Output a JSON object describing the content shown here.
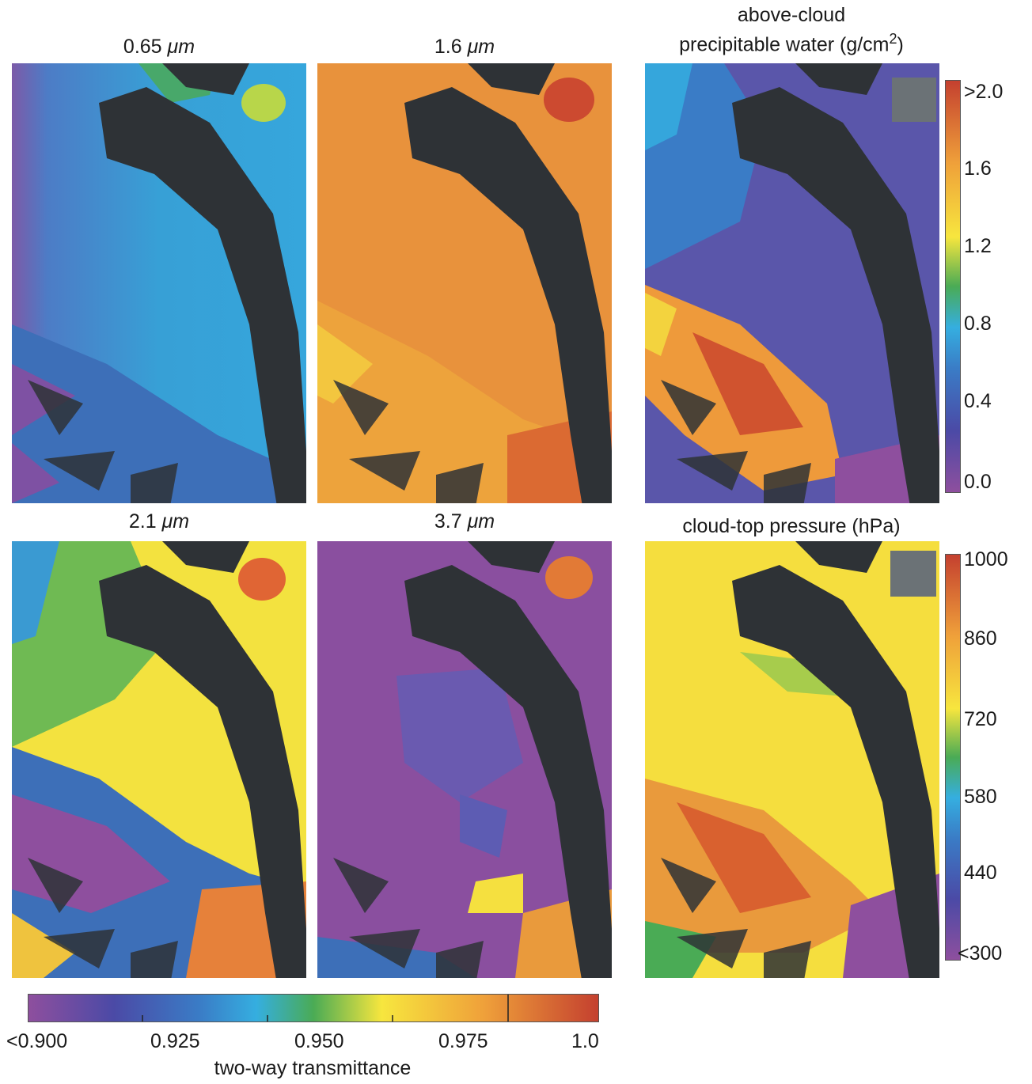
{
  "panels": {
    "p065": {
      "title_main": "0.65 ",
      "title_unit": "μm"
    },
    "p16": {
      "title_main": "1.6 ",
      "title_unit": "μm"
    },
    "p21": {
      "title_main": "2.1 ",
      "title_unit": "μm"
    },
    "p37": {
      "title_main": "3.7 ",
      "title_unit": "μm"
    },
    "pw": {
      "title_line1": "above-cloud",
      "title_line2": "precipitable water (g/cm",
      "title_sup": "2",
      "title_close": ")"
    },
    "ctp": {
      "title": "cloud-top pressure (hPa)"
    }
  },
  "colorbars": {
    "transmittance": {
      "label": "two-way transmittance",
      "ticks": [
        "<0.900",
        "0.925",
        "0.950",
        "0.975",
        "1.0"
      ]
    },
    "precip_water": {
      "ticks": [
        ">2.0",
        "1.6",
        "1.2",
        "0.8",
        "0.4",
        "0.0"
      ]
    },
    "pressure": {
      "ticks": [
        "1000",
        "860",
        "720",
        "580",
        "440",
        "<300"
      ]
    }
  },
  "colors": {
    "cloud_free": "#2e3236",
    "missing": "#6b7276",
    "purple": "#8e4f9e",
    "blue": "#3a6fbf",
    "cyan": "#35a6dc",
    "green": "#4aab55",
    "yellow": "#f7e23e",
    "orange": "#ee9a3b",
    "red": "#c8452f"
  }
}
